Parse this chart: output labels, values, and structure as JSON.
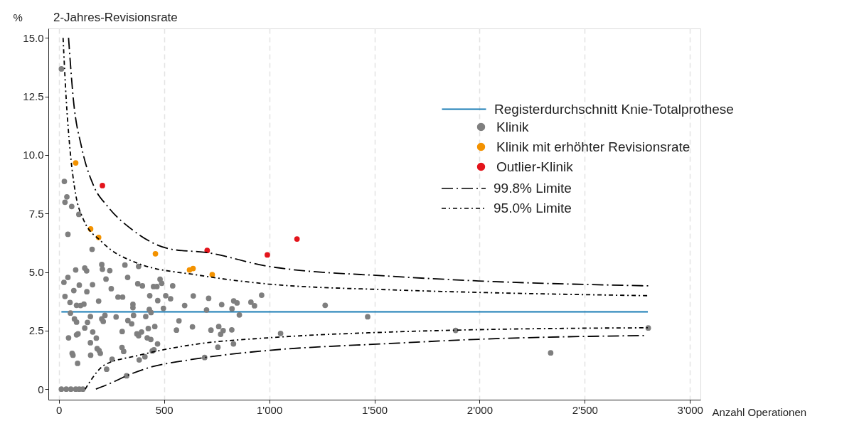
{
  "chart_data": {
    "type": "scatter",
    "title": "2-Jahres-Revisionsrate",
    "ylabel": "%",
    "xlabel": "Anzahl Operationen",
    "xlim": [
      -50,
      3050
    ],
    "ylim": [
      -0.45,
      15.4
    ],
    "xticks": [
      0,
      500,
      {
        "value": 1000,
        "label": "1'000"
      },
      {
        "value": 1500,
        "label": "1'500"
      },
      {
        "value": 2000,
        "label": "2'000"
      },
      {
        "value": 2500,
        "label": "2'500"
      },
      {
        "value": 3000,
        "label": "3'000"
      }
    ],
    "yticks": [
      0,
      2.5,
      {
        "value": 5,
        "label": "5.0"
      },
      7.5,
      {
        "value": 10,
        "label": "10.0"
      },
      12.5,
      {
        "value": 15,
        "label": "15.0"
      }
    ],
    "grid": "x",
    "legend": "right",
    "marker": "circle",
    "series": [
      {
        "name": "Registerdurchschnitt Knie-Totalprothese",
        "type": "line",
        "color": "#1a7db5",
        "line_style": "solid",
        "marker": "none",
        "x": [
          12,
          2800
        ],
        "values": [
          3.3,
          3.3
        ]
      },
      {
        "name": "Klinik",
        "type": "scatter",
        "color": "#7f7f7f",
        "x": [
          12,
          26,
          38,
          29,
          61,
          95,
          43,
          158,
          204,
          207,
          123,
          132,
          80,
          43,
          24,
          97,
          71,
          133,
          160,
          224,
          242,
          249,
          314,
          327,
          379,
          375,
          397,
          450,
          466,
          481,
          489,
          541,
          29,
          53,
          84,
          103,
          119,
          189,
          281,
          303,
          352,
          432,
          470,
          508,
          531,
          598,
          639,
          55,
          74,
          84,
          150,
          136,
          123,
          204,
          219,
          211,
          272,
          328,
          346,
          355,
          352,
          413,
          430,
          438,
          497,
          571,
          559,
          635,
          425,
          456,
          301,
          371,
          393,
          379,
          420,
          437,
          469,
          46,
          84,
          91,
          161,
          178,
          150,
          63,
          67,
          89,
          151,
          182,
          191,
          197,
          300,
          308,
          253,
          227,
          322,
          382,
          409,
          444,
          452,
          12,
          35,
          57,
          80,
          97,
          114,
          712,
          774,
          831,
          847,
          913,
          930,
          964,
          702,
          823,
          858,
          1266,
          1468,
          723,
          760,
          781,
          769,
          822,
          1054,
          756,
          830,
          693,
          1886,
          2338,
          2802
        ],
        "values": [
          13.67,
          8.87,
          8.21,
          7.98,
          7.8,
          7.46,
          6.61,
          5.97,
          5.32,
          5.12,
          5.17,
          5.05,
          5.09,
          4.77,
          4.56,
          4.44,
          4.21,
          4.16,
          4.46,
          4.7,
          5.06,
          4.29,
          5.3,
          4.77,
          5.24,
          4.5,
          4.41,
          4.38,
          4.38,
          4.69,
          4.52,
          4.41,
          3.96,
          3.7,
          3.58,
          3.57,
          3.63,
          3.76,
          3.93,
          3.93,
          3.62,
          3.99,
          3.78,
          3.99,
          3.86,
          3.57,
          3.98,
          3.25,
          3.0,
          2.86,
          3.1,
          2.85,
          2.61,
          3.0,
          3.15,
          2.89,
          3.08,
          2.93,
          2.79,
          3.15,
          3.48,
          3.1,
          3.4,
          3.27,
          3.45,
          2.92,
          2.52,
          2.66,
          2.59,
          2.67,
          2.46,
          2.36,
          2.44,
          2.28,
          2.19,
          2.12,
          1.93,
          2.19,
          2.32,
          2.36,
          2.44,
          2.18,
          1.98,
          1.53,
          1.45,
          1.1,
          1.45,
          1.73,
          1.65,
          1.53,
          1.78,
          1.61,
          1.28,
          0.85,
          0.57,
          1.25,
          1.38,
          1.63,
          1.68,
          0,
          0,
          0,
          0,
          0,
          0,
          3.88,
          3.61,
          3.77,
          3.68,
          3.71,
          3.56,
          4.01,
          3.38,
          3.43,
          3.17,
          3.58,
          3.09,
          2.52,
          2.67,
          2.5,
          2.34,
          2.53,
          2.38,
          1.79,
          1.93,
          1.35,
          2.51,
          1.55,
          2.61
        ]
      },
      {
        "name": "Klinik mit erhöhter Revisionsrate",
        "type": "scatter",
        "color": "#f39200",
        "x": [
          80,
          151,
          189,
          459,
          621,
          638,
          729
        ],
        "values": [
          9.66,
          6.84,
          6.48,
          5.78,
          5.09,
          5.15,
          4.89
        ]
      },
      {
        "name": "Outlier-Klinik",
        "type": "scatter",
        "color": "#e3141b",
        "x": [
          207,
          705,
          991,
          1132
        ],
        "values": [
          8.69,
          5.92,
          5.73,
          6.41
        ]
      },
      {
        "name": "99.8% Limite",
        "type": "line",
        "color": "#000000",
        "line_style": "dashed",
        "marker": "none",
        "x": [
          46,
          69,
          108,
          165,
          232,
          351,
          531,
          705,
          991,
          1579,
          1996,
          2802
        ],
        "values": [
          15,
          12.36,
          10.33,
          8.69,
          7.8,
          6.79,
          5.98,
          5.83,
          5.25,
          4.82,
          4.62,
          4.41
        ]
      },
      {
        "name": "95.0% Limite",
        "type": "line",
        "color": "#000000",
        "line_style": "dotted",
        "marker": "none",
        "x": [
          20,
          35,
          52,
          80,
          114,
          204,
          373,
          661,
          993,
          1579,
          1996,
          2802
        ],
        "values": [
          15,
          12.36,
          10.33,
          8.31,
          7.3,
          6.29,
          5.38,
          4.87,
          4.49,
          4.24,
          4.13,
          3.99
        ]
      },
      {
        "type": "line",
        "color": "#000000",
        "line_style": "dashed",
        "marker": "none",
        "x": [
          176,
          260,
          322,
          429,
          599,
          693,
          993,
          1579,
          1996,
          2791
        ],
        "values": [
          0,
          0.31,
          0.57,
          0.92,
          1.22,
          1.35,
          1.65,
          1.95,
          2.13,
          2.29
        ]
      },
      {
        "type": "line",
        "color": "#000000",
        "line_style": "dotted",
        "marker": "none",
        "x": [
          125,
          147,
          215,
          373,
          661,
          993,
          1579,
          1996,
          2802
        ],
        "values": [
          0,
          0.31,
          1.02,
          1.43,
          1.93,
          2.19,
          2.44,
          2.54,
          2.62
        ]
      }
    ]
  }
}
